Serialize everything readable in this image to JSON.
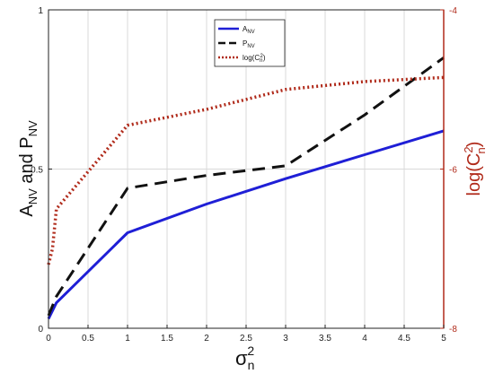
{
  "chart_data": {
    "type": "line",
    "xlabel": "σ",
    "xlabel_sub": "n",
    "xlabel_sup": "2",
    "ylabel_left": {
      "parts": [
        "A",
        "NV",
        " and P",
        "NV"
      ]
    },
    "ylabel_right": {
      "parts": [
        "log(C",
        "2",
        "n",
        ")"
      ]
    },
    "x_ticks": [
      "0",
      "0.5",
      "1",
      "1.5",
      "2",
      "2.5",
      "3",
      "3.5",
      "4",
      "4.5",
      "5"
    ],
    "y_left_ticks": [
      "0",
      "0.5",
      "1"
    ],
    "y_right_ticks": [
      "-8",
      "-6",
      "-4"
    ],
    "xlim": [
      0,
      5
    ],
    "ylim_left": [
      0,
      1
    ],
    "ylim_right": [
      -8,
      -4
    ],
    "grid": true,
    "legend_position": "top-center",
    "series": [
      {
        "name_parts": [
          "A",
          "NV",
          ""
        ],
        "axis": "left",
        "style": "solid",
        "color": "#1f1fd6",
        "x": [
          0,
          0.1,
          1,
          2,
          3,
          4,
          5
        ],
        "y": [
          0.03,
          0.08,
          0.3,
          0.39,
          0.47,
          0.545,
          0.62
        ]
      },
      {
        "name_parts": [
          "P",
          "NV",
          ""
        ],
        "axis": "left",
        "style": "dashed",
        "color": "#111111",
        "x": [
          0,
          0.1,
          1,
          2,
          3,
          4,
          5
        ],
        "y": [
          0.04,
          0.1,
          0.44,
          0.48,
          0.51,
          0.67,
          0.85
        ]
      },
      {
        "name_parts": [
          "log(C",
          "n",
          "2",
          ")"
        ],
        "axis": "right",
        "style": "dotted",
        "color": "#b02a1a",
        "x": [
          0,
          0.05,
          0.1,
          1,
          2,
          3,
          4,
          5
        ],
        "y": [
          -7.2,
          -7.0,
          -6.5,
          -5.45,
          -5.25,
          -5.0,
          -4.9,
          -4.85
        ]
      }
    ]
  }
}
